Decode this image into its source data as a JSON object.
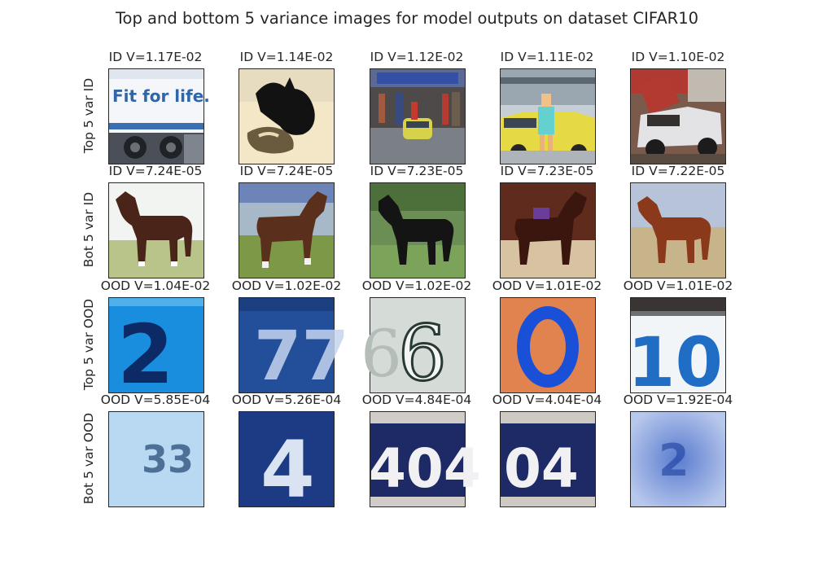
{
  "figure": {
    "title": "Top and bottom 5 variance images for model outputs on dataset CIFAR10"
  },
  "rows": [
    {
      "label": "Top 5 var ID",
      "cells": [
        {
          "title": "ID V=1.17E-02",
          "icon": "truck-advertising-image",
          "text": "Fit for life."
        },
        {
          "title": "ID V=1.14E-02",
          "icon": "cat-silhouette-image"
        },
        {
          "title": "ID V=1.12E-02",
          "icon": "street-car-crowd-image"
        },
        {
          "title": "ID V=1.11E-02",
          "icon": "yellow-car-person-image"
        },
        {
          "title": "ID V=1.10E-02",
          "icon": "open-hood-car-image"
        }
      ]
    },
    {
      "label": "Bot 5 var ID",
      "cells": [
        {
          "title": "ID V=7.24E-05",
          "icon": "horse-image"
        },
        {
          "title": "ID V=7.24E-05",
          "icon": "horse-image"
        },
        {
          "title": "ID V=7.23E-05",
          "icon": "horse-image"
        },
        {
          "title": "ID V=7.23E-05",
          "icon": "horse-image"
        },
        {
          "title": "ID V=7.22E-05",
          "icon": "horse-image"
        }
      ]
    },
    {
      "label": "Top 5 var OOD",
      "cells": [
        {
          "title": "OOD V=1.04E-02",
          "icon": "house-number-image",
          "text": "2"
        },
        {
          "title": "OOD V=1.02E-02",
          "icon": "house-number-image",
          "text": "77"
        },
        {
          "title": "OOD V=1.02E-02",
          "icon": "house-number-image",
          "text": "6"
        },
        {
          "title": "OOD V=1.01E-02",
          "icon": "house-number-image",
          "text": "0"
        },
        {
          "title": "OOD V=1.01E-02",
          "icon": "house-number-image",
          "text": "10"
        }
      ]
    },
    {
      "label": "Bot 5 var OOD",
      "cells": [
        {
          "title": "OOD V=5.85E-04",
          "icon": "house-number-image",
          "text": "33"
        },
        {
          "title": "OOD V=5.26E-04",
          "icon": "house-number-image",
          "text": "4"
        },
        {
          "title": "OOD V=4.84E-04",
          "icon": "house-number-image",
          "text": "404"
        },
        {
          "title": "OOD V=4.04E-04",
          "icon": "house-number-image",
          "text": "04"
        },
        {
          "title": "OOD V=1.92E-04",
          "icon": "house-number-image",
          "text": "2"
        }
      ]
    }
  ]
}
